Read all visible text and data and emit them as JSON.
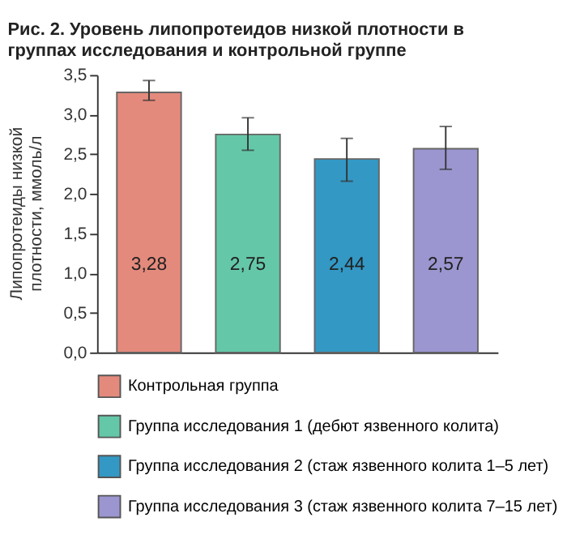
{
  "chart_data": {
    "type": "bar",
    "title": "Рис. 2. Уровень липопротеидов низкой плотности в группах исследования и контрольной группе",
    "ylabel": "Липопротеиды низкой плотности, ммоль/л",
    "categories": [
      null,
      null,
      null,
      null
    ],
    "series": [
      {
        "name": "Контрольная группа",
        "color": "#e48a7c",
        "values": [
          3.28,
          null,
          null,
          null
        ],
        "errors": [
          [
            3.18,
            3.43
          ],
          null,
          null,
          null
        ],
        "value_labels": [
          "3,28",
          null,
          null,
          null
        ]
      },
      {
        "name": "Группа исследования 1 (дебют язвенного колита)",
        "color": "#64c8a8",
        "values": [
          null,
          2.75,
          null,
          null
        ],
        "errors": [
          null,
          [
            2.55,
            2.96
          ],
          null,
          null
        ],
        "value_labels": [
          null,
          "2,75",
          null,
          null
        ]
      },
      {
        "name": "Группа исследования 2 (стаж язвенного колита 1–5 лет)",
        "color": "#3398c4",
        "values": [
          null,
          null,
          2.44,
          null
        ],
        "errors": [
          null,
          null,
          [
            2.16,
            2.7
          ],
          null
        ],
        "value_labels": [
          null,
          null,
          "2,44",
          null
        ]
      },
      {
        "name": "Группа исследования 3 (стаж язвенного колита 7–15 лет)",
        "color": "#9b96d0",
        "values": [
          null,
          null,
          null,
          2.57
        ],
        "errors": [
          null,
          null,
          null,
          [
            2.31,
            2.85
          ]
        ],
        "value_labels": [
          null,
          null,
          null,
          "2,57"
        ]
      }
    ],
    "ylim": [
      0,
      3.5
    ],
    "yticks": [
      {
        "value": 0,
        "label": "0,0"
      },
      {
        "value": 0.5,
        "label": "0,5"
      },
      {
        "value": 1,
        "label": "1,0"
      },
      {
        "value": 1.5,
        "label": "1,5"
      },
      {
        "value": 2,
        "label": "2,0"
      },
      {
        "value": 2.5,
        "label": "2,5"
      },
      {
        "value": 3,
        "label": "3,0"
      },
      {
        "value": 3.5,
        "label": "3,5"
      }
    ],
    "grid": false,
    "legend": "bottom"
  }
}
